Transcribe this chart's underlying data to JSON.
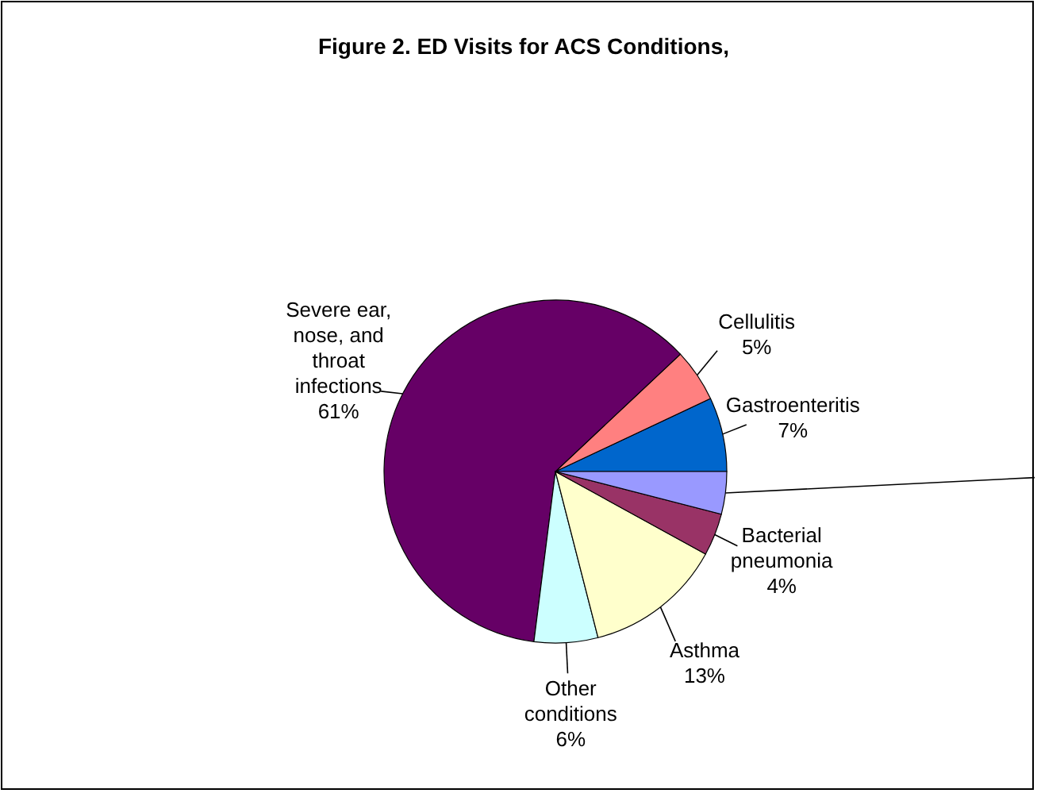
{
  "chart_data": {
    "type": "pie",
    "title": "Figure 2. ED Visits for ACS Conditions,",
    "categories": [
      "Gastroenteritis",
      "Cellulitis",
      "Severe ear, nose, and throat infections",
      "Other conditions",
      "Asthma",
      "Bacterial pneumonia",
      null
    ],
    "values": [
      7,
      5,
      61,
      6,
      13,
      4,
      4
    ],
    "value_labels": [
      "7%",
      "5%",
      "61%",
      "6%",
      "13%",
      "4%",
      null
    ],
    "colors": [
      "#0066cc",
      "#ff8080",
      "#660066",
      "#ccffff",
      "#ffffcc",
      "#993366",
      "#9999ff"
    ]
  }
}
